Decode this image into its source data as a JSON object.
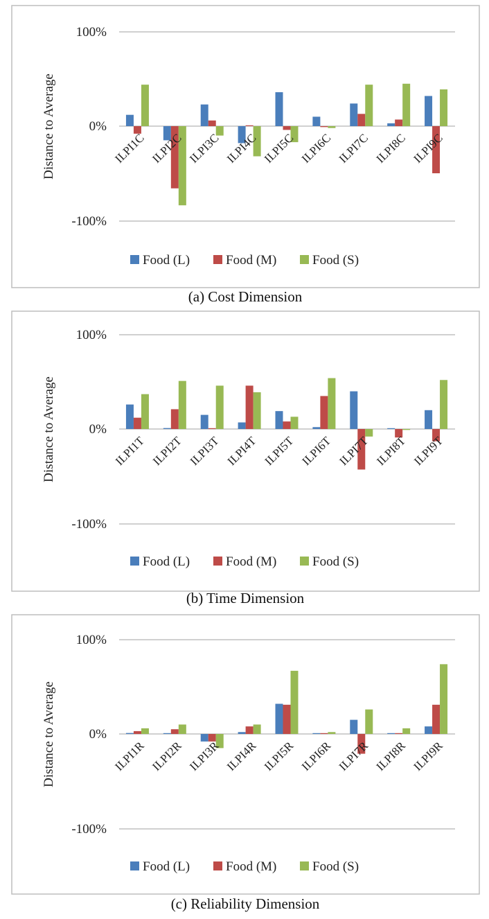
{
  "legend": [
    "Food (L)",
    "Food (M)",
    "Food (S)"
  ],
  "colors": {
    "L": "#4a7ebb",
    "M": "#be4b48",
    "S": "#98b954"
  },
  "chart_data": [
    {
      "type": "bar",
      "caption": "(a) Cost Dimension",
      "ylabel": "Distance to Average",
      "yticks": [
        "100%",
        "0%",
        "-100%"
      ],
      "ylim": [
        -100,
        100
      ],
      "legend_position": "bottom",
      "categories": [
        "ILPI1C",
        "ILPI2C",
        "ILPI3C",
        "ILPI4C",
        "ILPI5C",
        "ILPI6C",
        "ILPI7C",
        "ILPI8C",
        "ILPI9C"
      ],
      "series": [
        {
          "name": "Food (L)",
          "values": [
            12,
            -15,
            23,
            -18,
            36,
            10,
            24,
            3,
            32
          ]
        },
        {
          "name": "Food (M)",
          "values": [
            -8,
            -66,
            6,
            0,
            -4,
            -1,
            13,
            7,
            -50
          ]
        },
        {
          "name": "Food (S)",
          "values": [
            44,
            -84,
            -10,
            -32,
            -17,
            -2,
            44,
            45,
            39
          ]
        }
      ]
    },
    {
      "type": "bar",
      "caption": "(b) Time Dimension",
      "ylabel": "Distance to Average",
      "yticks": [
        "100%",
        "0%",
        "-100%"
      ],
      "ylim": [
        -100,
        100
      ],
      "legend_position": "bottom",
      "categories": [
        "ILPI1T",
        "ILPI2T",
        "ILPI3T",
        "ILPI4T",
        "ILPI5T",
        "ILPI6T",
        "ILPI7T",
        "ILPI8T",
        "ILPI9T"
      ],
      "series": [
        {
          "name": "Food (L)",
          "values": [
            26,
            1,
            15,
            7,
            19,
            2,
            40,
            0,
            20
          ]
        },
        {
          "name": "Food (M)",
          "values": [
            12,
            21,
            0,
            46,
            8,
            35,
            -43,
            -9,
            -13
          ]
        },
        {
          "name": "Food (S)",
          "values": [
            37,
            51,
            46,
            39,
            13,
            54,
            -8,
            -1,
            52
          ]
        }
      ]
    },
    {
      "type": "bar",
      "caption": "(c) Reliability Dimension",
      "ylabel": "Distance to Average",
      "yticks": [
        "100%",
        "0%",
        "-100%"
      ],
      "ylim": [
        -100,
        100
      ],
      "legend_position": "bottom",
      "categories": [
        "ILPI1R",
        "ILPI2R",
        "ILPI3R",
        "ILPI4R",
        "ILPI5R",
        "ILPI6R",
        "ILPI7R",
        "ILPI8R",
        "ILPI9R"
      ],
      "series": [
        {
          "name": "Food (L)",
          "values": [
            1,
            0,
            -8,
            2,
            32,
            0,
            15,
            0,
            8
          ]
        },
        {
          "name": "Food (M)",
          "values": [
            3,
            5,
            -8,
            8,
            31,
            0,
            -21,
            0,
            31
          ]
        },
        {
          "name": "Food (S)",
          "values": [
            6,
            10,
            -15,
            10,
            67,
            2,
            26,
            6,
            74
          ]
        }
      ]
    }
  ]
}
